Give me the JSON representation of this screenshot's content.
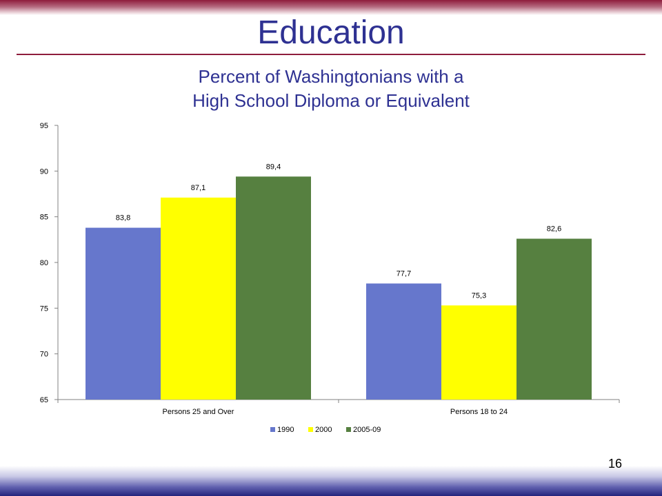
{
  "slide": {
    "title": "Education",
    "page_number": "16"
  },
  "colors": {
    "top_band": "#8e1c3c",
    "bottom_band": "#23237c",
    "title_text": "#2e3192"
  },
  "chart_data": {
    "type": "bar",
    "title_lines": [
      "Percent of Washingtonians with a",
      "High School Diploma or Equivalent"
    ],
    "xlabel": "",
    "ylabel": "",
    "ylim": [
      65,
      95
    ],
    "yticks": [
      65,
      70,
      75,
      80,
      85,
      90,
      95
    ],
    "grid": false,
    "legend_position": "bottom",
    "categories": [
      "Persons 25 and Over",
      "Persons 18 to 24"
    ],
    "series": [
      {
        "name": "1990",
        "color": "#6677cc",
        "values": [
          83.8,
          77.7
        ],
        "labels": [
          "83,8",
          "77,7"
        ]
      },
      {
        "name": "2000",
        "color": "#ffff00",
        "values": [
          87.1,
          75.3
        ],
        "labels": [
          "87,1",
          "75,3"
        ]
      },
      {
        "name": "2005-09",
        "color": "#568040",
        "values": [
          89.4,
          82.6
        ],
        "labels": [
          "89,4",
          "82,6"
        ]
      }
    ]
  }
}
